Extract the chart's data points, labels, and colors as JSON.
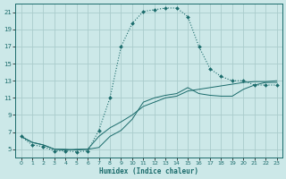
{
  "xlabel": "Humidex (Indice chaleur)",
  "xlim": [
    -0.5,
    23.5
  ],
  "ylim": [
    4,
    22
  ],
  "yticks": [
    5,
    7,
    9,
    11,
    13,
    15,
    17,
    19,
    21
  ],
  "xticks": [
    0,
    1,
    2,
    3,
    4,
    5,
    6,
    7,
    8,
    9,
    10,
    11,
    12,
    13,
    14,
    15,
    16,
    17,
    18,
    19,
    20,
    21,
    22,
    23
  ],
  "bg_color": "#cce8e8",
  "grid_color": "#aacccc",
  "line_color": "#1a6b6b",
  "line_main_x": [
    0,
    1,
    2,
    3,
    4,
    5,
    6,
    7,
    8,
    9,
    10,
    11,
    12,
    13,
    14,
    15,
    16,
    17,
    18,
    19,
    20,
    21,
    22,
    23
  ],
  "line_main_y": [
    6.5,
    5.5,
    5.3,
    4.8,
    4.8,
    4.7,
    4.8,
    7.2,
    11.0,
    17.0,
    19.7,
    21.1,
    21.3,
    21.5,
    21.5,
    20.5,
    17.0,
    14.4,
    13.5,
    13.0,
    13.0,
    12.5,
    12.5,
    12.5
  ],
  "line2_x": [
    0,
    1,
    2,
    3,
    4,
    5,
    6,
    7,
    8,
    9,
    10,
    11,
    12,
    13,
    14,
    15,
    16,
    17,
    18,
    19,
    20,
    21,
    22,
    23
  ],
  "line2_y": [
    6.5,
    5.8,
    5.5,
    5.0,
    4.9,
    5.0,
    5.0,
    6.5,
    7.5,
    8.2,
    9.0,
    10.0,
    10.5,
    11.0,
    11.2,
    11.8,
    12.0,
    12.2,
    12.4,
    12.6,
    12.8,
    12.9,
    12.9,
    13.0
  ],
  "line3_x": [
    0,
    1,
    2,
    3,
    4,
    5,
    6,
    7,
    8,
    9,
    10,
    11,
    12,
    13,
    14,
    15,
    16,
    17,
    18,
    19,
    20,
    21,
    22,
    23
  ],
  "line3_y": [
    6.5,
    5.8,
    5.5,
    5.0,
    5.0,
    4.9,
    5.0,
    5.2,
    6.5,
    7.2,
    8.5,
    10.5,
    11.0,
    11.3,
    11.5,
    12.2,
    11.5,
    11.3,
    11.2,
    11.2,
    12.0,
    12.5,
    12.8,
    12.8
  ]
}
